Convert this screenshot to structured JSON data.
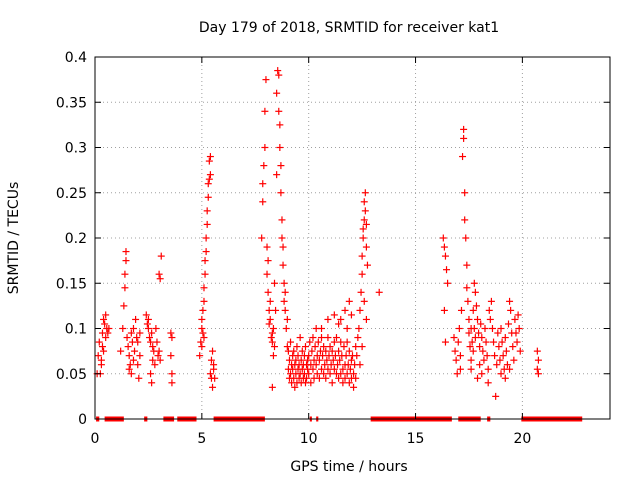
{
  "chart_data": {
    "type": "scatter",
    "title": "Day 179 of 2018, SRMTID for receiver kat1",
    "xlabel": "GPS time / hours",
    "ylabel": "SRMTID / TECUs",
    "xlim": [
      0,
      24.1
    ],
    "ylim": [
      0,
      0.4
    ],
    "x_ticks": [
      "0",
      "5",
      "10",
      "15",
      "20"
    ],
    "x_tick_values": [
      0,
      5,
      10,
      15,
      20
    ],
    "y_ticks": [
      "0",
      "0.05",
      "0.1",
      "0.15",
      "0.2",
      "0.25",
      "0.3",
      "0.35",
      "0.4"
    ],
    "y_tick_values": [
      0,
      0.05,
      0.1,
      0.15,
      0.2,
      0.25,
      0.3,
      0.35,
      0.4
    ],
    "grid": true,
    "marker": "+",
    "color": "#ff0000",
    "zero_segments": [
      [
        0.05,
        0.2
      ],
      [
        0.45,
        1.35
      ],
      [
        2.3,
        2.45
      ],
      [
        3.2,
        3.7
      ],
      [
        3.85,
        4.75
      ],
      [
        5.55,
        7.95
      ],
      [
        10.05,
        10.15
      ],
      [
        10.35,
        10.45
      ],
      [
        12.9,
        16.7
      ],
      [
        17.0,
        18.05
      ],
      [
        18.35,
        18.5
      ],
      [
        19.95,
        22.8
      ]
    ],
    "points": [
      [
        0.1,
        0.05
      ],
      [
        0.15,
        0.07
      ],
      [
        0.2,
        0.085
      ],
      [
        0.25,
        0.05
      ],
      [
        0.3,
        0.065
      ],
      [
        0.35,
        0.095
      ],
      [
        0.35,
        0.08
      ],
      [
        0.4,
        0.11
      ],
      [
        0.45,
        0.105
      ],
      [
        0.5,
        0.115
      ],
      [
        0.5,
        0.09
      ],
      [
        0.55,
        0.1
      ],
      [
        0.6,
        0.095
      ],
      [
        0.65,
        0.1
      ],
      [
        0.3,
        0.06
      ],
      [
        0.4,
        0.075
      ],
      [
        1.2,
        0.075
      ],
      [
        1.3,
        0.1
      ],
      [
        1.35,
        0.125
      ],
      [
        1.4,
        0.145
      ],
      [
        1.4,
        0.16
      ],
      [
        1.45,
        0.175
      ],
      [
        1.45,
        0.185
      ],
      [
        1.5,
        0.09
      ],
      [
        1.55,
        0.08
      ],
      [
        1.6,
        0.07
      ],
      [
        1.6,
        0.055
      ],
      [
        1.7,
        0.095
      ],
      [
        1.75,
        0.085
      ],
      [
        1.8,
        0.1
      ],
      [
        1.8,
        0.065
      ],
      [
        1.85,
        0.075
      ],
      [
        1.9,
        0.11
      ],
      [
        1.95,
        0.09
      ],
      [
        2.0,
        0.085
      ],
      [
        2.0,
        0.06
      ],
      [
        2.05,
        0.045
      ],
      [
        2.1,
        0.07
      ],
      [
        2.1,
        0.095
      ],
      [
        1.65,
        0.06
      ],
      [
        1.7,
        0.05
      ],
      [
        2.4,
        0.115
      ],
      [
        2.45,
        0.105
      ],
      [
        2.5,
        0.1
      ],
      [
        2.55,
        0.09
      ],
      [
        2.6,
        0.085
      ],
      [
        2.65,
        0.095
      ],
      [
        2.7,
        0.08
      ],
      [
        2.7,
        0.065
      ],
      [
        2.75,
        0.075
      ],
      [
        2.8,
        0.06
      ],
      [
        2.85,
        0.1
      ],
      [
        2.9,
        0.085
      ],
      [
        2.95,
        0.07
      ],
      [
        3.0,
        0.075
      ],
      [
        2.6,
        0.05
      ],
      [
        2.65,
        0.04
      ],
      [
        3.05,
        0.065
      ],
      [
        2.5,
        0.11
      ],
      [
        3.0,
        0.16
      ],
      [
        3.05,
        0.155
      ],
      [
        3.1,
        0.18
      ],
      [
        3.55,
        0.095
      ],
      [
        3.6,
        0.09
      ],
      [
        3.55,
        0.07
      ],
      [
        3.6,
        0.05
      ],
      [
        3.6,
        0.04
      ],
      [
        4.9,
        0.07
      ],
      [
        4.95,
        0.085
      ],
      [
        5.0,
        0.1
      ],
      [
        5.0,
        0.11
      ],
      [
        5.05,
        0.12
      ],
      [
        5.05,
        0.095
      ],
      [
        5.1,
        0.13
      ],
      [
        5.1,
        0.145
      ],
      [
        5.15,
        0.16
      ],
      [
        5.15,
        0.175
      ],
      [
        5.2,
        0.185
      ],
      [
        5.2,
        0.2
      ],
      [
        5.25,
        0.215
      ],
      [
        5.25,
        0.23
      ],
      [
        5.3,
        0.245
      ],
      [
        5.3,
        0.26
      ],
      [
        5.35,
        0.265
      ],
      [
        5.35,
        0.285
      ],
      [
        5.4,
        0.29
      ],
      [
        5.4,
        0.27
      ],
      [
        5.0,
        0.08
      ],
      [
        5.1,
        0.09
      ],
      [
        5.4,
        0.05
      ],
      [
        5.45,
        0.065
      ],
      [
        5.45,
        0.045
      ],
      [
        5.5,
        0.075
      ],
      [
        5.5,
        0.035
      ],
      [
        5.55,
        0.06
      ],
      [
        5.55,
        0.055
      ],
      [
        5.6,
        0.045
      ],
      [
        7.8,
        0.2
      ],
      [
        7.85,
        0.24
      ],
      [
        7.85,
        0.26
      ],
      [
        7.9,
        0.28
      ],
      [
        7.95,
        0.3
      ],
      [
        7.95,
        0.34
      ],
      [
        8.0,
        0.375
      ],
      [
        8.05,
        0.19
      ],
      [
        8.05,
        0.16
      ],
      [
        8.1,
        0.175
      ],
      [
        8.1,
        0.14
      ],
      [
        8.15,
        0.12
      ],
      [
        8.15,
        0.105
      ],
      [
        8.2,
        0.13
      ],
      [
        8.2,
        0.11
      ],
      [
        8.25,
        0.09
      ],
      [
        8.3,
        0.095
      ],
      [
        8.3,
        0.085
      ],
      [
        8.35,
        0.1
      ],
      [
        8.35,
        0.07
      ],
      [
        8.4,
        0.08
      ],
      [
        8.4,
        0.15
      ],
      [
        8.45,
        0.12
      ],
      [
        8.5,
        0.27
      ],
      [
        8.5,
        0.36
      ],
      [
        8.55,
        0.385
      ],
      [
        8.6,
        0.38
      ],
      [
        8.6,
        0.34
      ],
      [
        8.65,
        0.325
      ],
      [
        8.65,
        0.3
      ],
      [
        8.7,
        0.28
      ],
      [
        8.7,
        0.25
      ],
      [
        8.75,
        0.22
      ],
      [
        8.75,
        0.2
      ],
      [
        8.8,
        0.19
      ],
      [
        8.8,
        0.17
      ],
      [
        8.85,
        0.15
      ],
      [
        8.85,
        0.13
      ],
      [
        8.9,
        0.14
      ],
      [
        8.9,
        0.12
      ],
      [
        8.95,
        0.1
      ],
      [
        9.0,
        0.11
      ],
      [
        9.0,
        0.08
      ],
      [
        8.3,
        0.035
      ],
      [
        9.05,
        0.075
      ],
      [
        9.05,
        0.055
      ],
      [
        9.1,
        0.065
      ],
      [
        9.1,
        0.045
      ],
      [
        9.15,
        0.05
      ],
      [
        9.15,
        0.085
      ],
      [
        9.2,
        0.06
      ],
      [
        9.2,
        0.04
      ],
      [
        9.25,
        0.07
      ],
      [
        9.25,
        0.055
      ],
      [
        9.3,
        0.045
      ],
      [
        9.3,
        0.075
      ],
      [
        9.35,
        0.06
      ],
      [
        9.35,
        0.035
      ],
      [
        9.4,
        0.05
      ],
      [
        9.4,
        0.065
      ],
      [
        9.45,
        0.08
      ],
      [
        9.45,
        0.04
      ],
      [
        9.5,
        0.055
      ],
      [
        9.5,
        0.07
      ],
      [
        9.55,
        0.045
      ],
      [
        9.55,
        0.06
      ],
      [
        9.6,
        0.09
      ],
      [
        9.6,
        0.05
      ],
      [
        9.65,
        0.065
      ],
      [
        9.65,
        0.04
      ],
      [
        9.7,
        0.075
      ],
      [
        9.7,
        0.055
      ],
      [
        9.75,
        0.045
      ],
      [
        9.75,
        0.06
      ],
      [
        9.8,
        0.07
      ],
      [
        9.8,
        0.05
      ],
      [
        9.85,
        0.04
      ],
      [
        9.85,
        0.08
      ],
      [
        9.9,
        0.06
      ],
      [
        9.9,
        0.045
      ],
      [
        9.95,
        0.065
      ],
      [
        9.95,
        0.055
      ],
      [
        10.0,
        0.07
      ],
      [
        10.0,
        0.05
      ],
      [
        10.05,
        0.085
      ],
      [
        10.1,
        0.06
      ],
      [
        10.1,
        0.04
      ],
      [
        10.15,
        0.075
      ],
      [
        10.2,
        0.055
      ],
      [
        10.2,
        0.09
      ],
      [
        10.25,
        0.065
      ],
      [
        10.25,
        0.045
      ],
      [
        10.3,
        0.08
      ],
      [
        10.35,
        0.06
      ],
      [
        10.35,
        0.1
      ],
      [
        10.4,
        0.07
      ],
      [
        10.4,
        0.05
      ],
      [
        10.45,
        0.085
      ],
      [
        10.5,
        0.065
      ],
      [
        10.5,
        0.045
      ],
      [
        10.55,
        0.075
      ],
      [
        10.6,
        0.055
      ],
      [
        10.6,
        0.09
      ],
      [
        10.65,
        0.07
      ],
      [
        10.7,
        0.05
      ],
      [
        10.7,
        0.08
      ],
      [
        10.75,
        0.06
      ],
      [
        10.8,
        0.045
      ],
      [
        10.8,
        0.075
      ],
      [
        10.85,
        0.065
      ],
      [
        10.9,
        0.055
      ],
      [
        10.9,
        0.09
      ],
      [
        10.95,
        0.07
      ],
      [
        11.0,
        0.05
      ],
      [
        11.0,
        0.08
      ],
      [
        11.05,
        0.06
      ],
      [
        11.1,
        0.04
      ],
      [
        11.1,
        0.075
      ],
      [
        11.15,
        0.065
      ],
      [
        11.2,
        0.055
      ],
      [
        11.2,
        0.085
      ],
      [
        11.25,
        0.07
      ],
      [
        11.3,
        0.05
      ],
      [
        11.3,
        0.09
      ],
      [
        11.35,
        0.06
      ],
      [
        11.4,
        0.045
      ],
      [
        11.4,
        0.075
      ],
      [
        11.45,
        0.065
      ],
      [
        11.5,
        0.05
      ],
      [
        11.5,
        0.085
      ],
      [
        11.55,
        0.07
      ],
      [
        11.6,
        0.055
      ],
      [
        11.6,
        0.04
      ],
      [
        11.65,
        0.08
      ],
      [
        11.7,
        0.06
      ],
      [
        11.7,
        0.045
      ],
      [
        11.75,
        0.07
      ],
      [
        11.8,
        0.05
      ],
      [
        11.8,
        0.085
      ],
      [
        11.85,
        0.06
      ],
      [
        11.9,
        0.04
      ],
      [
        11.9,
        0.075
      ],
      [
        11.95,
        0.055
      ],
      [
        12.0,
        0.065
      ],
      [
        12.0,
        0.045
      ],
      [
        12.05,
        0.07
      ],
      [
        12.1,
        0.05
      ],
      [
        12.1,
        0.035
      ],
      [
        12.15,
        0.06
      ],
      [
        12.2,
        0.045
      ],
      [
        12.2,
        0.08
      ],
      [
        10.6,
        0.1
      ],
      [
        10.9,
        0.11
      ],
      [
        11.2,
        0.115
      ],
      [
        11.4,
        0.105
      ],
      [
        11.7,
        0.12
      ],
      [
        11.9,
        0.13
      ],
      [
        12.0,
        0.115
      ],
      [
        11.8,
        0.1
      ],
      [
        11.5,
        0.11
      ],
      [
        12.25,
        0.07
      ],
      [
        12.3,
        0.09
      ],
      [
        12.35,
        0.1
      ],
      [
        12.4,
        0.12
      ],
      [
        12.45,
        0.14
      ],
      [
        12.5,
        0.16
      ],
      [
        12.5,
        0.18
      ],
      [
        12.55,
        0.2
      ],
      [
        12.55,
        0.21
      ],
      [
        12.6,
        0.22
      ],
      [
        12.6,
        0.24
      ],
      [
        12.65,
        0.25
      ],
      [
        12.65,
        0.23
      ],
      [
        12.7,
        0.215
      ],
      [
        12.7,
        0.19
      ],
      [
        12.75,
        0.17
      ],
      [
        12.4,
        0.06
      ],
      [
        12.5,
        0.08
      ],
      [
        12.6,
        0.13
      ],
      [
        12.7,
        0.11
      ],
      [
        13.3,
        0.14
      ],
      [
        16.3,
        0.2
      ],
      [
        16.35,
        0.19
      ],
      [
        16.4,
        0.18
      ],
      [
        16.45,
        0.165
      ],
      [
        16.35,
        0.12
      ],
      [
        16.4,
        0.085
      ],
      [
        16.5,
        0.15
      ],
      [
        16.8,
        0.09
      ],
      [
        16.85,
        0.075
      ],
      [
        16.9,
        0.065
      ],
      [
        16.95,
        0.05
      ],
      [
        17.0,
        0.085
      ],
      [
        17.05,
        0.1
      ],
      [
        17.1,
        0.07
      ],
      [
        17.1,
        0.055
      ],
      [
        17.15,
        0.12
      ],
      [
        17.2,
        0.29
      ],
      [
        17.25,
        0.32
      ],
      [
        17.25,
        0.31
      ],
      [
        17.3,
        0.25
      ],
      [
        17.3,
        0.22
      ],
      [
        17.35,
        0.2
      ],
      [
        17.4,
        0.17
      ],
      [
        17.4,
        0.145
      ],
      [
        17.45,
        0.13
      ],
      [
        17.5,
        0.11
      ],
      [
        17.5,
        0.095
      ],
      [
        17.55,
        0.08
      ],
      [
        17.6,
        0.065
      ],
      [
        17.6,
        0.1
      ],
      [
        17.65,
        0.085
      ],
      [
        17.7,
        0.075
      ],
      [
        17.7,
        0.12
      ],
      [
        17.75,
        0.1
      ],
      [
        17.8,
        0.09
      ],
      [
        17.8,
        0.14
      ],
      [
        17.85,
        0.125
      ],
      [
        17.9,
        0.11
      ],
      [
        17.95,
        0.095
      ],
      [
        18.0,
        0.08
      ],
      [
        18.0,
        0.06
      ],
      [
        18.05,
        0.105
      ],
      [
        18.1,
        0.09
      ],
      [
        18.15,
        0.075
      ],
      [
        18.2,
        0.065
      ],
      [
        18.25,
        0.1
      ],
      [
        18.3,
        0.085
      ],
      [
        18.35,
        0.07
      ],
      [
        18.4,
        0.055
      ],
      [
        18.45,
        0.12
      ],
      [
        18.5,
        0.11
      ],
      [
        18.55,
        0.13
      ],
      [
        18.6,
        0.1
      ],
      [
        18.65,
        0.085
      ],
      [
        18.7,
        0.07
      ],
      [
        18.75,
        0.025
      ],
      [
        18.8,
        0.06
      ],
      [
        18.85,
        0.095
      ],
      [
        18.9,
        0.08
      ],
      [
        18.95,
        0.065
      ],
      [
        19.0,
        0.1
      ],
      [
        19.05,
        0.085
      ],
      [
        19.1,
        0.07
      ],
      [
        19.15,
        0.055
      ],
      [
        19.2,
        0.09
      ],
      [
        19.25,
        0.075
      ],
      [
        19.3,
        0.06
      ],
      [
        19.35,
        0.105
      ],
      [
        19.4,
        0.13
      ],
      [
        19.45,
        0.12
      ],
      [
        19.5,
        0.095
      ],
      [
        19.55,
        0.08
      ],
      [
        19.6,
        0.065
      ],
      [
        19.65,
        0.11
      ],
      [
        19.7,
        0.095
      ],
      [
        19.75,
        0.085
      ],
      [
        19.8,
        0.115
      ],
      [
        19.85,
        0.1
      ],
      [
        19.9,
        0.075
      ],
      [
        17.9,
        0.045
      ],
      [
        18.1,
        0.05
      ],
      [
        18.4,
        0.04
      ],
      [
        19.0,
        0.05
      ],
      [
        19.2,
        0.045
      ],
      [
        19.4,
        0.055
      ],
      [
        17.6,
        0.055
      ],
      [
        17.75,
        0.15
      ],
      [
        20.7,
        0.075
      ],
      [
        20.75,
        0.065
      ],
      [
        20.7,
        0.055
      ],
      [
        20.75,
        0.05
      ]
    ]
  }
}
